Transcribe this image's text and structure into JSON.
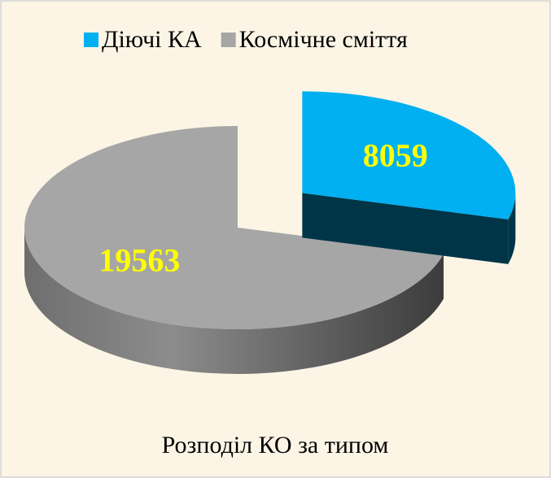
{
  "chart_data": {
    "type": "pie",
    "title": "Розподіл КО за типом",
    "categories": [
      "Діючі КА",
      "Космічне сміття"
    ],
    "values": [
      8059,
      19563
    ],
    "colors": [
      "#00b0f0",
      "#a6a6a6"
    ],
    "legend": "top"
  }
}
